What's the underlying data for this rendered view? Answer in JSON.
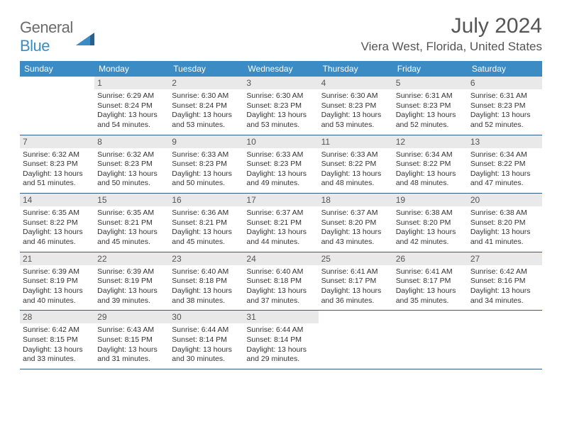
{
  "logo": {
    "word1": "General",
    "word2": "Blue"
  },
  "title": "July 2024",
  "location": "Viera West, Florida, United States",
  "colors": {
    "header_bg": "#3b8bc4",
    "header_text": "#ffffff",
    "daynum_bg": "#e9e9e9",
    "row_border": "#2f5e86",
    "title_color": "#555555",
    "body_text": "#333333"
  },
  "days_of_week": [
    "Sunday",
    "Monday",
    "Tuesday",
    "Wednesday",
    "Thursday",
    "Friday",
    "Saturday"
  ],
  "weeks": [
    [
      null,
      {
        "n": "1",
        "sunrise": "6:29 AM",
        "sunset": "8:24 PM",
        "dl1": "Daylight: 13 hours",
        "dl2": "and 54 minutes."
      },
      {
        "n": "2",
        "sunrise": "6:30 AM",
        "sunset": "8:24 PM",
        "dl1": "Daylight: 13 hours",
        "dl2": "and 53 minutes."
      },
      {
        "n": "3",
        "sunrise": "6:30 AM",
        "sunset": "8:23 PM",
        "dl1": "Daylight: 13 hours",
        "dl2": "and 53 minutes."
      },
      {
        "n": "4",
        "sunrise": "6:30 AM",
        "sunset": "8:23 PM",
        "dl1": "Daylight: 13 hours",
        "dl2": "and 53 minutes."
      },
      {
        "n": "5",
        "sunrise": "6:31 AM",
        "sunset": "8:23 PM",
        "dl1": "Daylight: 13 hours",
        "dl2": "and 52 minutes."
      },
      {
        "n": "6",
        "sunrise": "6:31 AM",
        "sunset": "8:23 PM",
        "dl1": "Daylight: 13 hours",
        "dl2": "and 52 minutes."
      }
    ],
    [
      {
        "n": "7",
        "sunrise": "6:32 AM",
        "sunset": "8:23 PM",
        "dl1": "Daylight: 13 hours",
        "dl2": "and 51 minutes."
      },
      {
        "n": "8",
        "sunrise": "6:32 AM",
        "sunset": "8:23 PM",
        "dl1": "Daylight: 13 hours",
        "dl2": "and 50 minutes."
      },
      {
        "n": "9",
        "sunrise": "6:33 AM",
        "sunset": "8:23 PM",
        "dl1": "Daylight: 13 hours",
        "dl2": "and 50 minutes."
      },
      {
        "n": "10",
        "sunrise": "6:33 AM",
        "sunset": "8:23 PM",
        "dl1": "Daylight: 13 hours",
        "dl2": "and 49 minutes."
      },
      {
        "n": "11",
        "sunrise": "6:33 AM",
        "sunset": "8:22 PM",
        "dl1": "Daylight: 13 hours",
        "dl2": "and 48 minutes."
      },
      {
        "n": "12",
        "sunrise": "6:34 AM",
        "sunset": "8:22 PM",
        "dl1": "Daylight: 13 hours",
        "dl2": "and 48 minutes."
      },
      {
        "n": "13",
        "sunrise": "6:34 AM",
        "sunset": "8:22 PM",
        "dl1": "Daylight: 13 hours",
        "dl2": "and 47 minutes."
      }
    ],
    [
      {
        "n": "14",
        "sunrise": "6:35 AM",
        "sunset": "8:22 PM",
        "dl1": "Daylight: 13 hours",
        "dl2": "and 46 minutes."
      },
      {
        "n": "15",
        "sunrise": "6:35 AM",
        "sunset": "8:21 PM",
        "dl1": "Daylight: 13 hours",
        "dl2": "and 45 minutes."
      },
      {
        "n": "16",
        "sunrise": "6:36 AM",
        "sunset": "8:21 PM",
        "dl1": "Daylight: 13 hours",
        "dl2": "and 45 minutes."
      },
      {
        "n": "17",
        "sunrise": "6:37 AM",
        "sunset": "8:21 PM",
        "dl1": "Daylight: 13 hours",
        "dl2": "and 44 minutes."
      },
      {
        "n": "18",
        "sunrise": "6:37 AM",
        "sunset": "8:20 PM",
        "dl1": "Daylight: 13 hours",
        "dl2": "and 43 minutes."
      },
      {
        "n": "19",
        "sunrise": "6:38 AM",
        "sunset": "8:20 PM",
        "dl1": "Daylight: 13 hours",
        "dl2": "and 42 minutes."
      },
      {
        "n": "20",
        "sunrise": "6:38 AM",
        "sunset": "8:20 PM",
        "dl1": "Daylight: 13 hours",
        "dl2": "and 41 minutes."
      }
    ],
    [
      {
        "n": "21",
        "sunrise": "6:39 AM",
        "sunset": "8:19 PM",
        "dl1": "Daylight: 13 hours",
        "dl2": "and 40 minutes."
      },
      {
        "n": "22",
        "sunrise": "6:39 AM",
        "sunset": "8:19 PM",
        "dl1": "Daylight: 13 hours",
        "dl2": "and 39 minutes."
      },
      {
        "n": "23",
        "sunrise": "6:40 AM",
        "sunset": "8:18 PM",
        "dl1": "Daylight: 13 hours",
        "dl2": "and 38 minutes."
      },
      {
        "n": "24",
        "sunrise": "6:40 AM",
        "sunset": "8:18 PM",
        "dl1": "Daylight: 13 hours",
        "dl2": "and 37 minutes."
      },
      {
        "n": "25",
        "sunrise": "6:41 AM",
        "sunset": "8:17 PM",
        "dl1": "Daylight: 13 hours",
        "dl2": "and 36 minutes."
      },
      {
        "n": "26",
        "sunrise": "6:41 AM",
        "sunset": "8:17 PM",
        "dl1": "Daylight: 13 hours",
        "dl2": "and 35 minutes."
      },
      {
        "n": "27",
        "sunrise": "6:42 AM",
        "sunset": "8:16 PM",
        "dl1": "Daylight: 13 hours",
        "dl2": "and 34 minutes."
      }
    ],
    [
      {
        "n": "28",
        "sunrise": "6:42 AM",
        "sunset": "8:15 PM",
        "dl1": "Daylight: 13 hours",
        "dl2": "and 33 minutes."
      },
      {
        "n": "29",
        "sunrise": "6:43 AM",
        "sunset": "8:15 PM",
        "dl1": "Daylight: 13 hours",
        "dl2": "and 31 minutes."
      },
      {
        "n": "30",
        "sunrise": "6:44 AM",
        "sunset": "8:14 PM",
        "dl1": "Daylight: 13 hours",
        "dl2": "and 30 minutes."
      },
      {
        "n": "31",
        "sunrise": "6:44 AM",
        "sunset": "8:14 PM",
        "dl1": "Daylight: 13 hours",
        "dl2": "and 29 minutes."
      },
      null,
      null,
      null
    ]
  ],
  "labels": {
    "sunrise_prefix": "Sunrise: ",
    "sunset_prefix": "Sunset: "
  }
}
